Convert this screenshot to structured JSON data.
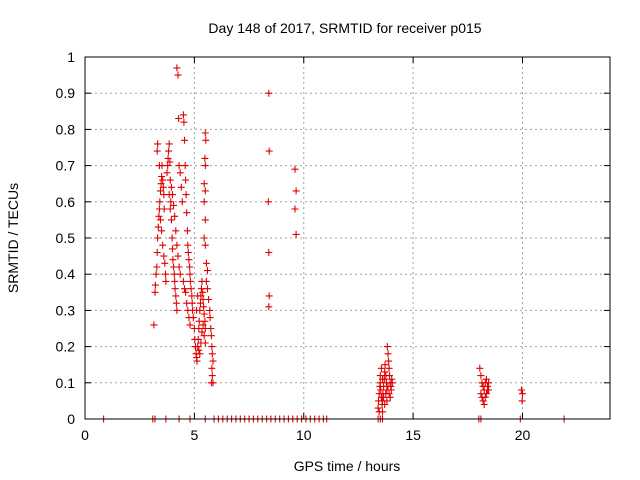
{
  "chart_data": {
    "type": "scatter",
    "title": "Day 148 of 2017, SRMTID for receiver p015",
    "xlabel": "GPS time / hours",
    "ylabel": "SRMTID / TECUs",
    "xlim": [
      0,
      24
    ],
    "ylim": [
      0,
      1
    ],
    "xticks": [
      0,
      5,
      10,
      15,
      20
    ],
    "xtick_labels": [
      "0",
      "5",
      "10",
      "15",
      "20"
    ],
    "yticks": [
      0,
      0.1,
      0.2,
      0.3,
      0.4,
      0.5,
      0.6,
      0.7,
      0.8,
      0.9,
      1
    ],
    "ytick_labels": [
      "0",
      "0.1",
      "0.2",
      "0.3",
      "0.4",
      "0.5",
      "0.6",
      "0.7",
      "0.8",
      "0.9",
      "1"
    ],
    "grid": true,
    "marker": "+",
    "series": [
      {
        "name": "SRMTID",
        "color": "#e00000",
        "points": [
          [
            0.85,
            0
          ],
          [
            3.1,
            0
          ],
          [
            3.2,
            0
          ],
          [
            3.7,
            0
          ],
          [
            4.3,
            0
          ],
          [
            4.8,
            0
          ],
          [
            5.5,
            0
          ],
          [
            5.9,
            0
          ],
          [
            6.1,
            0
          ],
          [
            6.3,
            0
          ],
          [
            6.5,
            0
          ],
          [
            6.7,
            0
          ],
          [
            6.9,
            0
          ],
          [
            7.1,
            0
          ],
          [
            7.3,
            0
          ],
          [
            7.5,
            0
          ],
          [
            7.7,
            0
          ],
          [
            7.9,
            0
          ],
          [
            8.1,
            0
          ],
          [
            8.3,
            0
          ],
          [
            8.5,
            0
          ],
          [
            8.7,
            0
          ],
          [
            8.9,
            0
          ],
          [
            9.1,
            0
          ],
          [
            9.3,
            0
          ],
          [
            9.5,
            0
          ],
          [
            9.7,
            0
          ],
          [
            9.9,
            0
          ],
          [
            10.1,
            0
          ],
          [
            10.3,
            0
          ],
          [
            10.5,
            0
          ],
          [
            10.7,
            0
          ],
          [
            10.9,
            0
          ],
          [
            11.05,
            0
          ],
          [
            13.4,
            0
          ],
          [
            13.5,
            0
          ],
          [
            13.6,
            0
          ],
          [
            18.0,
            0
          ],
          [
            18.1,
            0
          ],
          [
            19.9,
            0
          ],
          [
            21.9,
            0
          ],
          [
            3.15,
            0.26
          ],
          [
            3.2,
            0.35
          ],
          [
            3.22,
            0.37
          ],
          [
            3.25,
            0.4
          ],
          [
            3.28,
            0.42
          ],
          [
            3.3,
            0.46
          ],
          [
            3.32,
            0.5
          ],
          [
            3.35,
            0.53
          ],
          [
            3.38,
            0.56
          ],
          [
            3.4,
            0.58
          ],
          [
            3.42,
            0.6
          ],
          [
            3.45,
            0.63
          ],
          [
            3.48,
            0.65
          ],
          [
            3.5,
            0.67
          ],
          [
            3.52,
            0.7
          ],
          [
            3.55,
            0.66
          ],
          [
            3.58,
            0.64
          ],
          [
            3.6,
            0.62
          ],
          [
            3.62,
            0.58
          ],
          [
            3.3,
            0.74
          ],
          [
            3.32,
            0.76
          ],
          [
            3.4,
            0.7
          ],
          [
            3.45,
            0.55
          ],
          [
            3.5,
            0.52
          ],
          [
            3.55,
            0.48
          ],
          [
            3.6,
            0.45
          ],
          [
            3.65,
            0.43
          ],
          [
            3.68,
            0.4
          ],
          [
            3.7,
            0.38
          ],
          [
            3.75,
            0.68
          ],
          [
            3.78,
            0.7
          ],
          [
            3.8,
            0.72
          ],
          [
            3.82,
            0.74
          ],
          [
            3.85,
            0.76
          ],
          [
            3.88,
            0.71
          ],
          [
            3.9,
            0.66
          ],
          [
            3.92,
            0.6
          ],
          [
            3.95,
            0.55
          ],
          [
            3.98,
            0.5
          ],
          [
            4.0,
            0.47
          ],
          [
            4.02,
            0.44
          ],
          [
            4.05,
            0.42
          ],
          [
            4.08,
            0.4
          ],
          [
            4.1,
            0.38
          ],
          [
            4.12,
            0.36
          ],
          [
            4.15,
            0.34
          ],
          [
            4.18,
            0.32
          ],
          [
            4.2,
            0.3
          ],
          [
            3.85,
            0.62
          ],
          [
            3.9,
            0.58
          ],
          [
            3.95,
            0.64
          ],
          [
            4.0,
            0.62
          ],
          [
            4.05,
            0.59
          ],
          [
            4.1,
            0.56
          ],
          [
            4.15,
            0.52
          ],
          [
            4.2,
            0.48
          ],
          [
            4.25,
            0.45
          ],
          [
            4.3,
            0.42
          ],
          [
            4.35,
            0.4
          ],
          [
            4.2,
            0.97
          ],
          [
            4.25,
            0.95
          ],
          [
            4.28,
            0.83
          ],
          [
            4.3,
            0.7
          ],
          [
            4.35,
            0.68
          ],
          [
            4.4,
            0.64
          ],
          [
            4.45,
            0.6
          ],
          [
            4.5,
            0.84
          ],
          [
            4.52,
            0.82
          ],
          [
            4.55,
            0.77
          ],
          [
            4.58,
            0.7
          ],
          [
            4.6,
            0.66
          ],
          [
            4.62,
            0.62
          ],
          [
            4.65,
            0.57
          ],
          [
            4.68,
            0.52
          ],
          [
            4.7,
            0.48
          ],
          [
            4.72,
            0.46
          ],
          [
            4.75,
            0.44
          ],
          [
            4.78,
            0.42
          ],
          [
            4.8,
            0.4
          ],
          [
            4.82,
            0.38
          ],
          [
            4.85,
            0.36
          ],
          [
            4.88,
            0.34
          ],
          [
            4.9,
            0.32
          ],
          [
            4.92,
            0.3
          ],
          [
            4.95,
            0.28
          ],
          [
            4.6,
            0.35
          ],
          [
            4.65,
            0.32
          ],
          [
            4.7,
            0.3
          ],
          [
            4.75,
            0.28
          ],
          [
            4.8,
            0.26
          ],
          [
            4.5,
            0.38
          ],
          [
            4.55,
            0.36
          ],
          [
            5.0,
            0.25
          ],
          [
            5.02,
            0.22
          ],
          [
            5.05,
            0.2
          ],
          [
            5.08,
            0.18
          ],
          [
            5.1,
            0.17
          ],
          [
            5.12,
            0.16
          ],
          [
            5.15,
            0.2
          ],
          [
            5.18,
            0.22
          ],
          [
            5.2,
            0.25
          ],
          [
            5.22,
            0.27
          ],
          [
            5.25,
            0.3
          ],
          [
            5.28,
            0.32
          ],
          [
            5.3,
            0.34
          ],
          [
            5.32,
            0.36
          ],
          [
            5.35,
            0.38
          ],
          [
            5.38,
            0.35
          ],
          [
            5.4,
            0.33
          ],
          [
            5.42,
            0.31
          ],
          [
            5.45,
            0.29
          ],
          [
            5.48,
            0.27
          ],
          [
            5.5,
            0.25
          ],
          [
            5.1,
            0.3
          ],
          [
            5.15,
            0.34
          ],
          [
            5.2,
            0.19
          ],
          [
            5.25,
            0.18
          ],
          [
            5.3,
            0.21
          ],
          [
            5.35,
            0.24
          ],
          [
            5.4,
            0.26
          ],
          [
            5.45,
            0.23
          ],
          [
            5.5,
            0.21
          ],
          [
            5.5,
            0.79
          ],
          [
            5.52,
            0.77
          ],
          [
            5.48,
            0.72
          ],
          [
            5.5,
            0.7
          ],
          [
            5.45,
            0.65
          ],
          [
            5.5,
            0.63
          ],
          [
            5.45,
            0.6
          ],
          [
            5.5,
            0.55
          ],
          [
            5.45,
            0.5
          ],
          [
            5.5,
            0.48
          ],
          [
            5.55,
            0.43
          ],
          [
            5.6,
            0.41
          ],
          [
            5.55,
            0.38
          ],
          [
            5.6,
            0.36
          ],
          [
            5.65,
            0.33
          ],
          [
            5.7,
            0.3
          ],
          [
            5.72,
            0.28
          ],
          [
            5.75,
            0.25
          ],
          [
            5.78,
            0.23
          ],
          [
            5.8,
            0.2
          ],
          [
            5.82,
            0.18
          ],
          [
            5.85,
            0.16
          ],
          [
            5.8,
            0.14
          ],
          [
            5.82,
            0.12
          ],
          [
            5.85,
            0.1
          ],
          [
            5.78,
            0.1
          ],
          [
            8.4,
            0.9
          ],
          [
            8.42,
            0.74
          ],
          [
            8.38,
            0.6
          ],
          [
            8.4,
            0.46
          ],
          [
            8.42,
            0.34
          ],
          [
            8.4,
            0.31
          ],
          [
            9.6,
            0.69
          ],
          [
            9.65,
            0.63
          ],
          [
            9.6,
            0.58
          ],
          [
            9.65,
            0.51
          ],
          [
            13.4,
            0.03
          ],
          [
            13.42,
            0.05
          ],
          [
            13.45,
            0.07
          ],
          [
            13.48,
            0.09
          ],
          [
            13.5,
            0.1
          ],
          [
            13.52,
            0.08
          ],
          [
            13.55,
            0.06
          ],
          [
            13.58,
            0.04
          ],
          [
            13.6,
            0.05
          ],
          [
            13.62,
            0.07
          ],
          [
            13.65,
            0.09
          ],
          [
            13.68,
            0.11
          ],
          [
            13.7,
            0.13
          ],
          [
            13.72,
            0.15
          ],
          [
            13.75,
            0.12
          ],
          [
            13.78,
            0.1
          ],
          [
            13.8,
            0.08
          ],
          [
            13.82,
            0.2
          ],
          [
            13.85,
            0.18
          ],
          [
            13.88,
            0.16
          ],
          [
            13.9,
            0.14
          ],
          [
            13.92,
            0.12
          ],
          [
            13.95,
            0.1
          ],
          [
            13.98,
            0.09
          ],
          [
            14.0,
            0.08
          ],
          [
            13.5,
            0.12
          ],
          [
            13.55,
            0.14
          ],
          [
            13.6,
            0.11
          ],
          [
            13.65,
            0.06
          ],
          [
            13.7,
            0.04
          ],
          [
            13.75,
            0.07
          ],
          [
            13.8,
            0.05
          ],
          [
            13.85,
            0.09
          ],
          [
            13.9,
            0.07
          ],
          [
            13.95,
            0.06
          ],
          [
            14.02,
            0.11
          ],
          [
            14.05,
            0.1
          ],
          [
            13.45,
            0.02
          ],
          [
            13.6,
            0.02
          ],
          [
            18.05,
            0.14
          ],
          [
            18.1,
            0.12
          ],
          [
            18.15,
            0.1
          ],
          [
            18.2,
            0.09
          ],
          [
            18.25,
            0.08
          ],
          [
            18.3,
            0.1
          ],
          [
            18.35,
            0.11
          ],
          [
            18.4,
            0.09
          ],
          [
            18.45,
            0.08
          ],
          [
            18.1,
            0.07
          ],
          [
            18.15,
            0.06
          ],
          [
            18.2,
            0.05
          ],
          [
            18.25,
            0.04
          ],
          [
            18.3,
            0.06
          ],
          [
            18.35,
            0.07
          ],
          [
            18.4,
            0.08
          ],
          [
            18.45,
            0.1
          ],
          [
            19.95,
            0.08
          ],
          [
            20.0,
            0.07
          ],
          [
            19.98,
            0.05
          ]
        ]
      }
    ]
  }
}
